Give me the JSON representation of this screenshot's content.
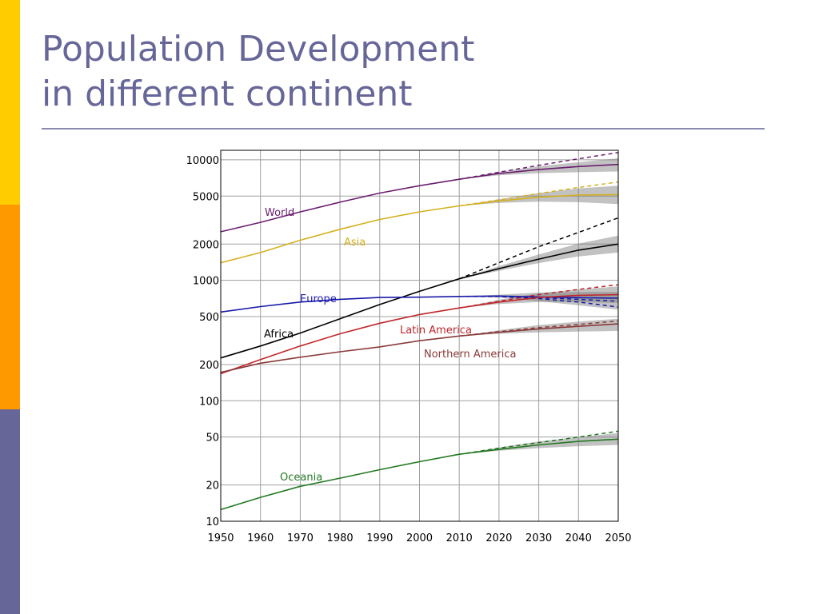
{
  "slide": {
    "title_line1": "Population Development",
    "title_line2": "in different continent",
    "accent_colors": [
      "#FFCC00",
      "#FF9900",
      "#666699"
    ]
  },
  "chart_data": {
    "type": "line",
    "title": "",
    "xlabel": "",
    "ylabel": "",
    "yscale": "log",
    "xlim": [
      1950,
      2050
    ],
    "ylim": [
      10,
      12000
    ],
    "xticks": [
      1950,
      1960,
      1970,
      1980,
      1990,
      2000,
      2010,
      2020,
      2030,
      2040,
      2050
    ],
    "yticks": [
      10,
      20,
      50,
      100,
      200,
      500,
      1000,
      2000,
      5000,
      10000
    ],
    "grid": true,
    "legend": "inline labels",
    "series": [
      {
        "name": "World",
        "color": "#6B1E6F",
        "x": [
          1950,
          1960,
          1970,
          1980,
          1990,
          2000,
          2010,
          2020,
          2030,
          2040,
          2050
        ],
        "values": [
          2530,
          3030,
          3700,
          4450,
          5300,
          6100,
          6900,
          7700,
          8300,
          8800,
          9150
        ],
        "projection_high": [
          6900,
          7900,
          9000,
          10200,
          11500
        ],
        "band_low": [
          6900,
          7450,
          7750,
          7900,
          8000
        ],
        "band_high": [
          6900,
          7950,
          8850,
          9550,
          10300
        ]
      },
      {
        "name": "Asia",
        "color": "#D4B01E",
        "x": [
          1950,
          1960,
          1970,
          1980,
          1990,
          2000,
          2010,
          2020,
          2030,
          2040,
          2050
        ],
        "values": [
          1400,
          1700,
          2150,
          2650,
          3200,
          3700,
          4150,
          4550,
          4900,
          5100,
          5150
        ],
        "projection_high": [
          4150,
          4650,
          5250,
          5900,
          6550
        ],
        "band_low": [
          4150,
          4400,
          4500,
          4450,
          4300
        ],
        "band_high": [
          4150,
          4700,
          5300,
          5800,
          6100
        ]
      },
      {
        "name": "Africa",
        "color": "#000000",
        "x": [
          1950,
          1960,
          1970,
          1980,
          1990,
          2000,
          2010,
          2020,
          2030,
          2040,
          2050
        ],
        "values": [
          227,
          285,
          365,
          480,
          630,
          810,
          1030,
          1250,
          1500,
          1780,
          2000
        ],
        "projection_high": [
          1030,
          1400,
          1900,
          2500,
          3300
        ],
        "band_low": [
          1030,
          1200,
          1390,
          1580,
          1700
        ],
        "band_high": [
          1030,
          1310,
          1640,
          2020,
          2350
        ]
      },
      {
        "name": "Europe",
        "color": "#1A1AAA",
        "x": [
          1950,
          1960,
          1970,
          1980,
          1990,
          2000,
          2010,
          2020,
          2030,
          2040,
          2050
        ],
        "values": [
          545,
          605,
          660,
          695,
          720,
          725,
          735,
          740,
          728,
          718,
          710
        ],
        "projection_high": [
          735,
          735,
          718,
          695,
          670
        ],
        "projection_low": [
          735,
          733,
          705,
          660,
          600
        ],
        "band_low": [
          735,
          720,
          670,
          620,
          570
        ],
        "band_high": [
          735,
          760,
          790,
          800,
          800
        ]
      },
      {
        "name": "Latin America",
        "color": "#C0262B",
        "x": [
          1950,
          1960,
          1970,
          1980,
          1990,
          2000,
          2010,
          2020,
          2030,
          2040,
          2050
        ],
        "values": [
          168,
          220,
          285,
          360,
          440,
          520,
          590,
          660,
          720,
          750,
          760
        ],
        "projection_high": [
          590,
          670,
          760,
          840,
          920
        ],
        "band_low": [
          590,
          635,
          660,
          660,
          650
        ],
        "band_high": [
          590,
          690,
          780,
          840,
          890
        ]
      },
      {
        "name": "Northern America",
        "color": "#8B3A3A",
        "x": [
          1950,
          1960,
          1970,
          1980,
          1990,
          2000,
          2010,
          2020,
          2030,
          2040,
          2050
        ],
        "values": [
          172,
          205,
          230,
          255,
          280,
          315,
          345,
          370,
          395,
          415,
          435
        ],
        "projection_high": [
          345,
          375,
          405,
          430,
          460
        ],
        "band_low": [
          345,
          360,
          370,
          375,
          380
        ],
        "band_high": [
          345,
          385,
          425,
          455,
          480
        ]
      },
      {
        "name": "Oceania",
        "color": "#237A23",
        "x": [
          1950,
          1960,
          1970,
          1980,
          1990,
          2000,
          2010,
          2020,
          2030,
          2040,
          2050
        ],
        "values": [
          12.5,
          15.8,
          19.5,
          22.8,
          26.8,
          31.2,
          36,
          39.5,
          43,
          46,
          48
        ],
        "projection_high": [
          36,
          40.5,
          45,
          50,
          56
        ],
        "band_low": [
          36,
          38.5,
          40.5,
          42,
          43
        ],
        "band_high": [
          36,
          41,
          46,
          50,
          54
        ]
      }
    ]
  }
}
